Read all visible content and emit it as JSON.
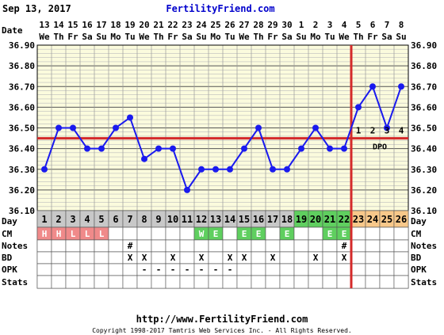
{
  "header": {
    "date": "Sep 13, 2017",
    "site": "FertilityFriend.com"
  },
  "footer": {
    "url": "http://www.FertilityFriend.com",
    "copyright": "Copyright 1998-2017 Tamtris Web Services Inc. - All Rights Reserved."
  },
  "colors": {
    "grid_background": "#fbfbdd",
    "grid_line": "#9a9a9a",
    "temperature_line": "#1a1aee",
    "coverline": "#d42a2a",
    "ovulation_line": "#d42a2a",
    "day_cell_gray": "#c8c8c8",
    "day_cell_green": "#5fcf5f",
    "day_cell_orange": "#f8c88a",
    "cm_menstrual": "#f08a8a",
    "cm_fertile": "#5fcf5f",
    "title_blue": "#0000cc"
  },
  "chart_data": {
    "type": "line",
    "title": "",
    "row_labels": {
      "date": "Date",
      "day": "Day",
      "cm": "CM",
      "notes": "Notes",
      "bd": "BD",
      "opk": "OPK",
      "stats": "Stats"
    },
    "dates": [
      "13",
      "14",
      "15",
      "16",
      "17",
      "18",
      "19",
      "20",
      "21",
      "22",
      "23",
      "24",
      "25",
      "26",
      "27",
      "28",
      "29",
      "30",
      "1",
      "2",
      "3",
      "4",
      "5",
      "6",
      "7",
      "8"
    ],
    "weekdays": [
      "We",
      "Th",
      "Fr",
      "Sa",
      "Su",
      "Mo",
      "Tu",
      "We",
      "Th",
      "Fr",
      "Sa",
      "Su",
      "Mo",
      "Tu",
      "We",
      "Th",
      "Fr",
      "Sa",
      "Su",
      "Mo",
      "Tu",
      "We",
      "Th",
      "Fr",
      "Sa",
      "Su"
    ],
    "days": [
      "1",
      "2",
      "3",
      "4",
      "5",
      "6",
      "7",
      "8",
      "9",
      "10",
      "11",
      "12",
      "13",
      "14",
      "15",
      "16",
      "17",
      "18",
      "19",
      "20",
      "21",
      "22",
      "23",
      "24",
      "25",
      "26"
    ],
    "day_phase": [
      "gray",
      "gray",
      "gray",
      "gray",
      "gray",
      "gray",
      "gray",
      "gray",
      "gray",
      "gray",
      "gray",
      "gray",
      "gray",
      "gray",
      "gray",
      "gray",
      "gray",
      "gray",
      "green",
      "green",
      "green",
      "green",
      "orange",
      "orange",
      "orange",
      "orange"
    ],
    "temperatures": [
      36.3,
      36.5,
      36.5,
      36.4,
      36.4,
      36.5,
      36.55,
      36.35,
      36.4,
      36.4,
      36.2,
      36.3,
      36.3,
      36.3,
      36.4,
      36.5,
      36.3,
      36.3,
      36.4,
      36.5,
      36.4,
      36.4,
      36.6,
      36.7,
      36.5,
      36.7
    ],
    "y_ticks": [
      "36.90",
      "36.80",
      "36.70",
      "36.60",
      "36.50",
      "36.40",
      "36.30",
      "36.20",
      "36.10"
    ],
    "ylim": [
      36.1,
      36.9
    ],
    "coverline": 36.45,
    "ovulation_day_index": 21,
    "dpo_label": "DPO",
    "dpo_markers": [
      {
        "day_index": 22,
        "label": "1"
      },
      {
        "day_index": 23,
        "label": "2"
      },
      {
        "day_index": 24,
        "label": "3"
      },
      {
        "day_index": 25,
        "label": "4"
      }
    ],
    "cm": [
      "H",
      "H",
      "L",
      "L",
      "L",
      "",
      "",
      "",
      "",
      "",
      "",
      "W",
      "E",
      "",
      "E",
      "E",
      "",
      "E",
      "",
      "",
      "E",
      "E",
      "",
      "",
      "",
      ""
    ],
    "cm_type": [
      "menstrual",
      "menstrual",
      "menstrual",
      "menstrual",
      "menstrual",
      "",
      "",
      "",
      "",
      "",
      "",
      "fertile",
      "fertile",
      "",
      "fertile",
      "fertile",
      "",
      "fertile",
      "",
      "",
      "fertile",
      "fertile",
      "",
      "",
      "",
      ""
    ],
    "notes": [
      "",
      "",
      "",
      "",
      "",
      "",
      "#",
      "",
      "",
      "",
      "",
      "",
      "",
      "",
      "",
      "",
      "",
      "",
      "",
      "",
      "",
      "#",
      "",
      "",
      "",
      ""
    ],
    "bd": [
      "",
      "",
      "",
      "",
      "",
      "",
      "X",
      "X",
      "",
      "X",
      "",
      "X",
      "",
      "X",
      "X",
      "",
      "X",
      "",
      "",
      "X",
      "",
      "X",
      "",
      "",
      "",
      ""
    ],
    "opk": [
      "",
      "",
      "",
      "",
      "",
      "",
      "",
      "-",
      "-",
      "-",
      "-",
      "-",
      "-",
      "-",
      "",
      "",
      "",
      "",
      "",
      "",
      "",
      "",
      "",
      "",
      "",
      ""
    ]
  }
}
